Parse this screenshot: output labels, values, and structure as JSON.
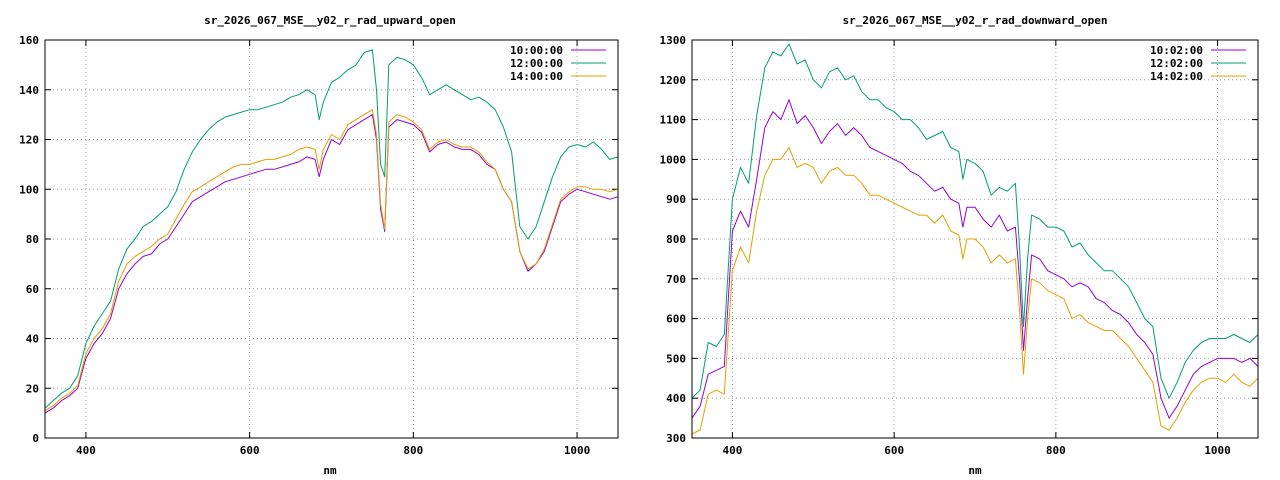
{
  "chart_data": [
    {
      "type": "line",
      "title": "sr_2026_067_MSE__y02_r_rad_upward_open",
      "xlabel": "nm",
      "ylabel": "",
      "xlim": [
        350,
        1050
      ],
      "ylim": [
        0,
        160
      ],
      "xticks": [
        400,
        600,
        800,
        1000
      ],
      "yticks": [
        0,
        20,
        40,
        60,
        80,
        100,
        120,
        140,
        160
      ],
      "grid": true,
      "legend_position": "top-right",
      "series": [
        {
          "name": "10:00:00",
          "color": "#9400d3",
          "x": [
            350,
            360,
            370,
            380,
            390,
            400,
            410,
            420,
            430,
            440,
            450,
            460,
            470,
            480,
            490,
            500,
            510,
            520,
            530,
            540,
            550,
            560,
            570,
            580,
            590,
            600,
            610,
            620,
            630,
            640,
            650,
            660,
            670,
            680,
            685,
            690,
            700,
            710,
            720,
            730,
            740,
            750,
            755,
            760,
            765,
            770,
            780,
            790,
            800,
            810,
            820,
            830,
            840,
            850,
            860,
            870,
            880,
            890,
            900,
            910,
            920,
            930,
            940,
            950,
            960,
            970,
            980,
            990,
            1000,
            1010,
            1020,
            1030,
            1040,
            1050
          ],
          "y": [
            10,
            12,
            15,
            17,
            20,
            32,
            38,
            42,
            48,
            60,
            66,
            70,
            73,
            74,
            78,
            80,
            85,
            90,
            95,
            97,
            99,
            101,
            103,
            104,
            105,
            106,
            107,
            108,
            108,
            109,
            110,
            111,
            113,
            112,
            105,
            112,
            120,
            118,
            124,
            126,
            128,
            130,
            120,
            92,
            83,
            125,
            128,
            127,
            126,
            123,
            115,
            118,
            119,
            117,
            116,
            116,
            114,
            110,
            108,
            100,
            95,
            75,
            67,
            70,
            75,
            85,
            95,
            98,
            100,
            99,
            98,
            97,
            96,
            97
          ]
        },
        {
          "name": "12:00:00",
          "color": "#009e73",
          "x": [
            350,
            360,
            370,
            380,
            390,
            400,
            410,
            420,
            430,
            440,
            450,
            460,
            470,
            480,
            490,
            500,
            510,
            520,
            530,
            540,
            550,
            560,
            570,
            580,
            590,
            600,
            610,
            620,
            630,
            640,
            650,
            660,
            670,
            680,
            685,
            690,
            700,
            710,
            720,
            730,
            740,
            750,
            755,
            760,
            765,
            770,
            780,
            790,
            800,
            810,
            820,
            830,
            840,
            850,
            860,
            870,
            880,
            890,
            900,
            910,
            920,
            930,
            940,
            950,
            960,
            970,
            980,
            990,
            1000,
            1010,
            1020,
            1030,
            1040,
            1050
          ],
          "y": [
            12,
            15,
            18,
            20,
            25,
            38,
            45,
            50,
            55,
            68,
            76,
            80,
            85,
            87,
            90,
            93,
            99,
            108,
            115,
            120,
            124,
            127,
            129,
            130,
            131,
            132,
            132,
            133,
            134,
            135,
            137,
            138,
            140,
            138,
            128,
            135,
            143,
            145,
            148,
            150,
            155,
            156,
            140,
            110,
            105,
            150,
            153,
            152,
            150,
            145,
            138,
            140,
            142,
            140,
            138,
            136,
            137,
            135,
            132,
            125,
            115,
            85,
            80,
            85,
            95,
            105,
            113,
            117,
            118,
            117,
            119,
            116,
            112,
            113
          ]
        },
        {
          "name": "14:00:00",
          "color": "#e69f00",
          "x": [
            350,
            360,
            370,
            380,
            390,
            400,
            410,
            420,
            430,
            440,
            450,
            460,
            470,
            480,
            490,
            500,
            510,
            520,
            530,
            540,
            550,
            560,
            570,
            580,
            590,
            600,
            610,
            620,
            630,
            640,
            650,
            660,
            670,
            680,
            685,
            690,
            700,
            710,
            720,
            730,
            740,
            750,
            755,
            760,
            765,
            770,
            780,
            790,
            800,
            810,
            820,
            830,
            840,
            850,
            860,
            870,
            880,
            890,
            900,
            910,
            920,
            930,
            940,
            950,
            960,
            970,
            980,
            990,
            1000,
            1010,
            1020,
            1030,
            1040,
            1050
          ],
          "y": [
            11,
            13,
            16,
            18,
            21,
            34,
            40,
            44,
            50,
            63,
            70,
            73,
            75,
            77,
            80,
            82,
            88,
            94,
            99,
            101,
            103,
            105,
            107,
            109,
            110,
            110,
            111,
            112,
            112,
            113,
            114,
            116,
            117,
            116,
            108,
            116,
            122,
            120,
            126,
            128,
            130,
            132,
            122,
            94,
            84,
            127,
            130,
            129,
            127,
            124,
            116,
            119,
            120,
            118,
            117,
            117,
            115,
            111,
            108,
            100,
            95,
            75,
            68,
            70,
            76,
            86,
            96,
            99,
            101,
            101,
            100,
            100,
            99,
            100
          ]
        }
      ]
    },
    {
      "type": "line",
      "title": "sr_2026_067_MSE__y02_r_rad_downward_open",
      "xlabel": "nm",
      "ylabel": "",
      "xlim": [
        350,
        1050
      ],
      "ylim": [
        300,
        1300
      ],
      "xticks": [
        400,
        600,
        800,
        1000
      ],
      "yticks": [
        300,
        400,
        500,
        600,
        700,
        800,
        900,
        1000,
        1100,
        1200,
        1300
      ],
      "grid": true,
      "legend_position": "top-right",
      "series": [
        {
          "name": "10:02:00",
          "color": "#9400d3",
          "x": [
            350,
            360,
            370,
            380,
            390,
            400,
            410,
            420,
            430,
            440,
            450,
            460,
            470,
            480,
            490,
            500,
            510,
            520,
            530,
            540,
            550,
            560,
            570,
            580,
            590,
            600,
            610,
            620,
            630,
            640,
            650,
            660,
            670,
            680,
            685,
            690,
            700,
            710,
            720,
            730,
            740,
            750,
            755,
            760,
            765,
            770,
            780,
            790,
            800,
            810,
            820,
            830,
            840,
            850,
            860,
            870,
            880,
            890,
            900,
            910,
            920,
            930,
            940,
            950,
            960,
            970,
            980,
            990,
            1000,
            1010,
            1020,
            1030,
            1040,
            1050
          ],
          "y": [
            350,
            380,
            460,
            470,
            480,
            820,
            870,
            830,
            950,
            1080,
            1120,
            1100,
            1150,
            1090,
            1110,
            1080,
            1040,
            1070,
            1090,
            1060,
            1080,
            1060,
            1030,
            1020,
            1010,
            1000,
            990,
            970,
            960,
            940,
            920,
            930,
            900,
            890,
            830,
            880,
            880,
            850,
            830,
            860,
            820,
            830,
            700,
            520,
            650,
            760,
            750,
            720,
            710,
            700,
            680,
            690,
            680,
            650,
            640,
            620,
            610,
            590,
            560,
            540,
            510,
            400,
            350,
            380,
            420,
            460,
            480,
            490,
            500,
            500,
            500,
            490,
            500,
            480
          ]
        },
        {
          "name": "12:02:00",
          "color": "#009e73",
          "x": [
            350,
            360,
            370,
            380,
            390,
            400,
            410,
            420,
            430,
            440,
            450,
            460,
            470,
            480,
            490,
            500,
            510,
            520,
            530,
            540,
            550,
            560,
            570,
            580,
            590,
            600,
            610,
            620,
            630,
            640,
            650,
            660,
            670,
            680,
            685,
            690,
            700,
            710,
            720,
            730,
            740,
            750,
            755,
            760,
            765,
            770,
            780,
            790,
            800,
            810,
            820,
            830,
            840,
            850,
            860,
            870,
            880,
            890,
            900,
            910,
            920,
            930,
            940,
            950,
            960,
            970,
            980,
            990,
            1000,
            1010,
            1020,
            1030,
            1040,
            1050
          ],
          "y": [
            400,
            420,
            540,
            530,
            560,
            900,
            980,
            940,
            1110,
            1230,
            1270,
            1260,
            1290,
            1240,
            1250,
            1200,
            1180,
            1220,
            1230,
            1200,
            1210,
            1170,
            1150,
            1150,
            1130,
            1120,
            1100,
            1100,
            1080,
            1050,
            1060,
            1070,
            1030,
            1020,
            950,
            1000,
            990,
            970,
            910,
            930,
            920,
            940,
            780,
            580,
            750,
            860,
            850,
            830,
            830,
            820,
            780,
            790,
            760,
            740,
            720,
            720,
            700,
            680,
            640,
            600,
            580,
            450,
            400,
            440,
            490,
            520,
            540,
            550,
            550,
            550,
            560,
            550,
            540,
            560
          ]
        },
        {
          "name": "14:02:00",
          "color": "#e69f00",
          "x": [
            350,
            360,
            370,
            380,
            390,
            400,
            410,
            420,
            430,
            440,
            450,
            460,
            470,
            480,
            490,
            500,
            510,
            520,
            530,
            540,
            550,
            560,
            570,
            580,
            590,
            600,
            610,
            620,
            630,
            640,
            650,
            660,
            670,
            680,
            685,
            690,
            700,
            710,
            720,
            730,
            740,
            750,
            755,
            760,
            765,
            770,
            780,
            790,
            800,
            810,
            820,
            830,
            840,
            850,
            860,
            870,
            880,
            890,
            900,
            910,
            920,
            930,
            940,
            950,
            960,
            970,
            980,
            990,
            1000,
            1010,
            1020,
            1030,
            1040,
            1050
          ],
          "y": [
            310,
            320,
            410,
            420,
            410,
            720,
            780,
            740,
            870,
            960,
            1000,
            1000,
            1030,
            980,
            990,
            980,
            940,
            970,
            980,
            960,
            960,
            940,
            910,
            910,
            900,
            890,
            880,
            870,
            860,
            860,
            840,
            860,
            820,
            810,
            750,
            800,
            800,
            780,
            740,
            760,
            740,
            750,
            620,
            460,
            600,
            700,
            690,
            670,
            660,
            650,
            600,
            610,
            590,
            580,
            570,
            570,
            550,
            530,
            500,
            470,
            440,
            330,
            320,
            350,
            390,
            420,
            440,
            450,
            450,
            440,
            460,
            440,
            430,
            450
          ]
        }
      ]
    }
  ]
}
